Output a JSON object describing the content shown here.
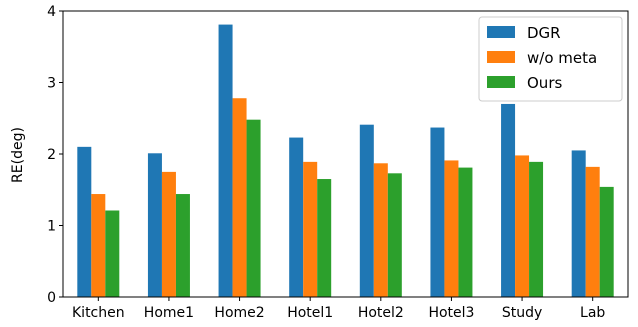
{
  "chart_data": {
    "type": "bar",
    "title": "",
    "xlabel": "",
    "ylabel": "RE(deg)",
    "ylim": [
      0,
      4
    ],
    "yticks": [
      0,
      1,
      2,
      3,
      4
    ],
    "grid": false,
    "legend_position": "top-right",
    "categories": [
      "Kitchen",
      "Home1",
      "Home2",
      "Hotel1",
      "Hotel2",
      "Hotel3",
      "Study",
      "Lab"
    ],
    "series": [
      {
        "name": "DGR",
        "color": "#1f77b4",
        "values": [
          2.1,
          2.01,
          3.81,
          2.23,
          2.41,
          2.37,
          2.7,
          2.05
        ]
      },
      {
        "name": "w/o meta",
        "color": "#ff7f0e",
        "values": [
          1.44,
          1.75,
          2.78,
          1.89,
          1.87,
          1.91,
          1.98,
          1.82
        ]
      },
      {
        "name": "Ours",
        "color": "#2ca02c",
        "values": [
          1.21,
          1.44,
          2.48,
          1.65,
          1.73,
          1.81,
          1.89,
          1.54
        ]
      }
    ]
  }
}
